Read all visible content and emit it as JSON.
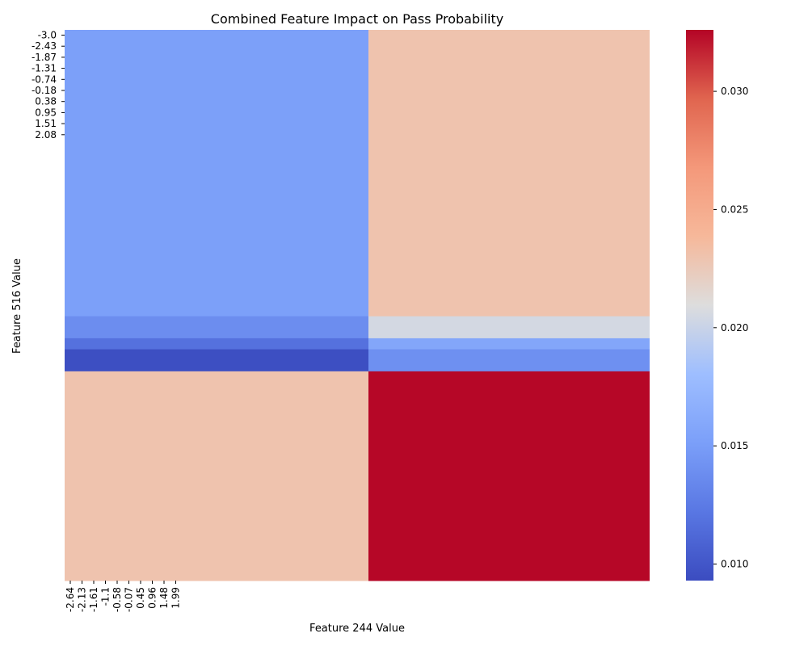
{
  "chart_data": {
    "type": "heatmap",
    "title": "Combined Feature Impact on Pass Probability",
    "xlabel": "Feature 244 Value",
    "ylabel": "Feature 516 Value",
    "x_tick_labels": [
      "-2.64",
      "-2.13",
      "-1.61",
      "-1.1",
      "-0.58",
      "-0.07",
      "0.45",
      "0.96",
      "1.48",
      "1.99"
    ],
    "y_tick_labels": [
      "-3.0",
      "-2.43",
      "-1.87",
      "-1.31",
      "-0.74",
      "-0.18",
      "0.38",
      "0.95",
      "1.51",
      "2.08"
    ],
    "n_columns": 50,
    "n_rows": 50,
    "column_split_index": 26,
    "row_segments": [
      {
        "row_start": 0,
        "row_end": 26,
        "left_value": 0.0152,
        "right_value": 0.023
      },
      {
        "row_start": 26,
        "row_end": 28,
        "left_value": 0.0138,
        "right_value": 0.0205
      },
      {
        "row_start": 28,
        "row_end": 29,
        "left_value": 0.0118,
        "right_value": 0.0158
      },
      {
        "row_start": 29,
        "row_end": 31,
        "left_value": 0.0095,
        "right_value": 0.014
      },
      {
        "row_start": 31,
        "row_end": 50,
        "left_value": 0.023,
        "right_value": 0.0325
      }
    ],
    "colorbar": {
      "colormap": "coolwarm",
      "vmin": 0.0093,
      "vmax": 0.0326,
      "ticks": [
        "0.010",
        "0.015",
        "0.020",
        "0.025",
        "0.030"
      ]
    }
  }
}
